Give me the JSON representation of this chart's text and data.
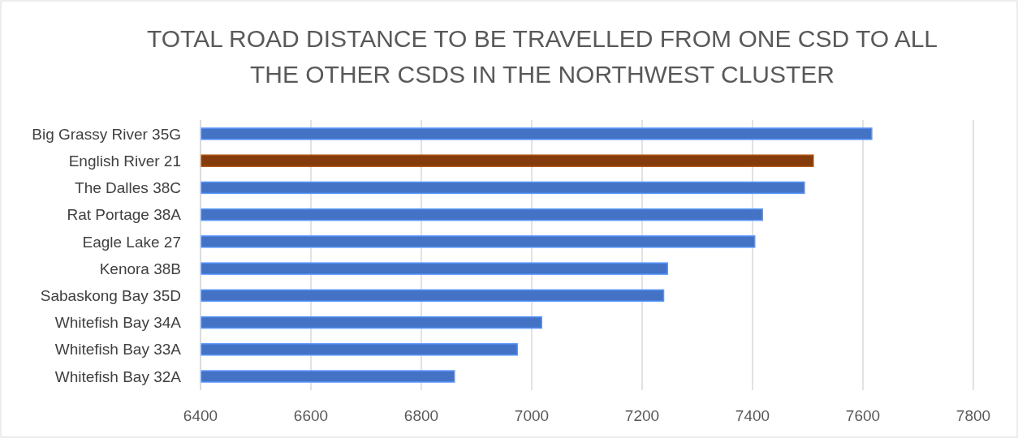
{
  "chart_data": {
    "type": "bar",
    "orientation": "horizontal",
    "title": "TOTAL ROAD DISTANCE TO BE TRAVELLED FROM ONE CSD TO ALL THE OTHER CSDS IN THE NORTHWEST CLUSTER",
    "categories": [
      "Big Grassy River 35G",
      "English River 21",
      "The Dalles 38C",
      "Rat Portage 38A",
      "Eagle Lake 27",
      "Kenora 38B",
      "Sabaskong Bay 35D",
      "Whitefish Bay 34A",
      "Whitefish Bay 33A",
      "Whitefish Bay 32A"
    ],
    "values": [
      7616,
      7510,
      7494,
      7418,
      7404,
      7246,
      7239,
      7018,
      6974,
      6860
    ],
    "colors": [
      "#4472c4",
      "#843c0c",
      "#4472c4",
      "#4472c4",
      "#4472c4",
      "#4472c4",
      "#4472c4",
      "#4472c4",
      "#4472c4",
      "#4472c4"
    ],
    "xlim": [
      6400,
      7800
    ],
    "xticks": [
      6400,
      6600,
      6800,
      7000,
      7200,
      7400,
      7600,
      7800
    ],
    "grid": "x"
  }
}
